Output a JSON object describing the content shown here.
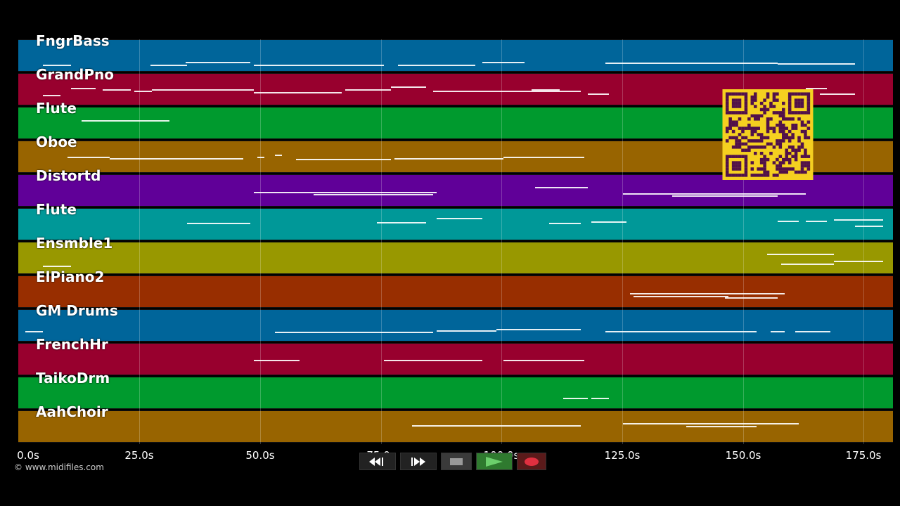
{
  "tracks": [
    {
      "name": "FngrBass",
      "color": "#00659a"
    },
    {
      "name": "GrandPno",
      "color": "#98002e"
    },
    {
      "name": "Flute",
      "color": "#009a2e"
    },
    {
      "name": "Oboe",
      "color": "#986400"
    },
    {
      "name": "Distortd",
      "color": "#600098"
    },
    {
      "name": "Flute",
      "color": "#009898"
    },
    {
      "name": "Ensmble1",
      "color": "#989800"
    },
    {
      "name": "ElPiano2",
      "color": "#982e00"
    },
    {
      "name": "GM Drums",
      "color": "#00659a"
    },
    {
      "name": "FrenchHr",
      "color": "#98002e"
    },
    {
      "name": "TaikoDrm",
      "color": "#009a2e"
    },
    {
      "name": "AahChoir",
      "color": "#986400"
    }
  ],
  "timeline": {
    "ticks": [
      "0.0s",
      "25.0s",
      "50.0s",
      "75.0s",
      "100.0s",
      "125.0s",
      "150.0s",
      "175.0s"
    ]
  },
  "copyright": "© www.midifiles.com",
  "transport": {
    "rewind_icon": "rewind-icon",
    "forward_icon": "fast-forward-icon",
    "stop_icon": "stop-icon",
    "play_icon": "play-icon",
    "record_icon": "record-icon"
  },
  "qr": {
    "fg": "#50104a",
    "bg": "#f5d020"
  }
}
